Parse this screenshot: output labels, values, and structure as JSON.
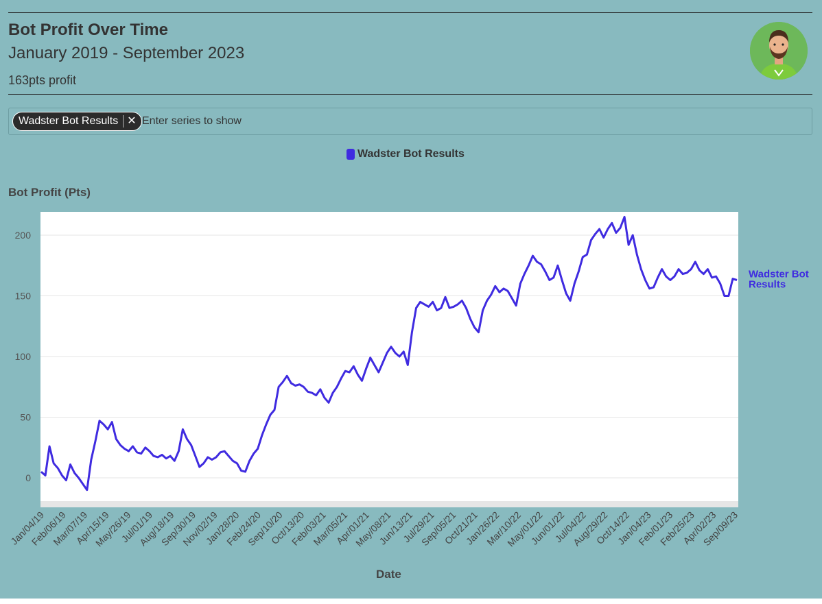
{
  "header": {
    "title": "Bot Profit Over Time",
    "subtitle": "January 2019 - September 2023",
    "profit_text": "163pts profit"
  },
  "series_selector": {
    "chip_label": "Wadster Bot Results",
    "placeholder": "Enter series to show",
    "remove_icon": "close-icon"
  },
  "legend": {
    "label": "Wadster Bot Results",
    "color": "#3f2be0"
  },
  "chart_data": {
    "type": "line",
    "ylabel": "Bot Profit (Pts)",
    "xlabel": "Date",
    "ylim": [
      -10,
      218
    ],
    "y_ticks": [
      0,
      50,
      100,
      150,
      200
    ],
    "x_tick_labels": [
      "Jan/04/19",
      "Feb/06/19",
      "Mar/07/19",
      "Apr/15/19",
      "May/26/19",
      "Jul/01/19",
      "Aug/18/19",
      "Sep/30/19",
      "Nov/02/19",
      "Jan/28/20",
      "Feb/24/20",
      "Sep/10/20",
      "Oct/13/20",
      "Feb/03/21",
      "Mar/05/21",
      "Apr/01/21",
      "May/08/21",
      "Jun/13/21",
      "Jul/29/21",
      "Sep/05/21",
      "Oct/21/21",
      "Jan/26/22",
      "Mar/10/22",
      "May/01/22",
      "Jun/01/22",
      "Jul/04/22",
      "Aug/29/22",
      "Oct/14/22",
      "Jan/04/23",
      "Feb/01/23",
      "Feb/25/23",
      "Apr/02/23",
      "Sep/09/23"
    ],
    "end_label": "Wadster Bot Results",
    "grid": true,
    "series": [
      {
        "name": "Wadster Bot Results",
        "color": "#3f2be0",
        "values": [
          5,
          2,
          26,
          12,
          8,
          2,
          -2,
          11,
          4,
          0,
          -5,
          -10,
          15,
          30,
          47,
          44,
          40,
          46,
          32,
          27,
          24,
          22,
          26,
          21,
          20,
          25,
          22,
          18,
          17,
          19,
          16,
          18,
          14,
          22,
          40,
          32,
          27,
          18,
          9,
          12,
          17,
          15,
          17,
          21,
          22,
          18,
          14,
          12,
          6,
          5,
          14,
          20,
          24,
          35,
          44,
          52,
          56,
          75,
          79,
          84,
          78,
          76,
          77,
          75,
          71,
          70,
          68,
          73,
          66,
          62,
          70,
          75,
          82,
          88,
          87,
          92,
          85,
          80,
          90,
          99,
          93,
          87,
          95,
          103,
          108,
          103,
          100,
          104,
          93,
          120,
          140,
          145,
          143,
          141,
          145,
          138,
          140,
          149,
          140,
          141,
          143,
          146,
          140,
          131,
          124,
          120,
          138,
          146,
          151,
          158,
          153,
          156,
          154,
          148,
          142,
          160,
          168,
          175,
          183,
          178,
          176,
          170,
          163,
          165,
          175,
          163,
          152,
          146,
          160,
          170,
          182,
          184,
          196,
          201,
          205,
          198,
          205,
          210,
          202,
          206,
          215,
          192,
          200,
          184,
          172,
          163,
          156,
          157,
          165,
          172,
          166,
          163,
          166,
          172,
          168,
          169,
          172,
          178,
          171,
          168,
          172,
          165,
          166,
          160,
          150,
          150,
          164,
          163
        ]
      }
    ]
  }
}
